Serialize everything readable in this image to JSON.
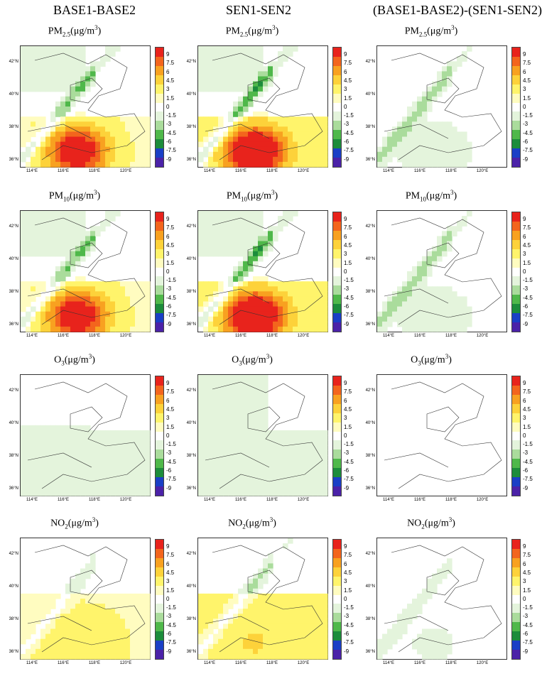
{
  "columns": [
    "BASE1-BASE2",
    "SEN1-SEN2",
    "(BASE1-BASE2)-(SEN1-SEN2)"
  ],
  "rows": [
    {
      "species": "PM",
      "sub": "2.5",
      "unit": "(μg/m",
      "sup": "3",
      "close": ")"
    },
    {
      "species": "PM",
      "sub": "10",
      "unit": "(μg/m",
      "sup": "3",
      "close": ")"
    },
    {
      "species": "O",
      "sub": "3",
      "unit": "(μg/m",
      "sup": "3",
      "close": ")"
    },
    {
      "species": "NO",
      "sub": "2",
      "unit": "(μg/m",
      "sup": "3",
      "close": ")"
    }
  ],
  "lat_labels": [
    "42°N",
    "40°N",
    "38°N",
    "36°N"
  ],
  "lon_labels": [
    "114°E",
    "116°E",
    "118°E",
    "120°E"
  ],
  "colorbar": {
    "labels": [
      "9",
      "7.5",
      "6",
      "4.5",
      "3",
      "1.5",
      "0",
      "-1.5",
      "-3",
      "-4.5",
      "-6",
      "-7.5",
      "-9"
    ],
    "colors": [
      "#e8231c",
      "#f3651d",
      "#f8a120",
      "#fdd23a",
      "#fff46b",
      "#fffcc0",
      "#ffffff",
      "#e4f4dc",
      "#aadc9c",
      "#4fb84a",
      "#1c8c3b",
      "#1a3fc6",
      "#4b22a8"
    ]
  }
}
